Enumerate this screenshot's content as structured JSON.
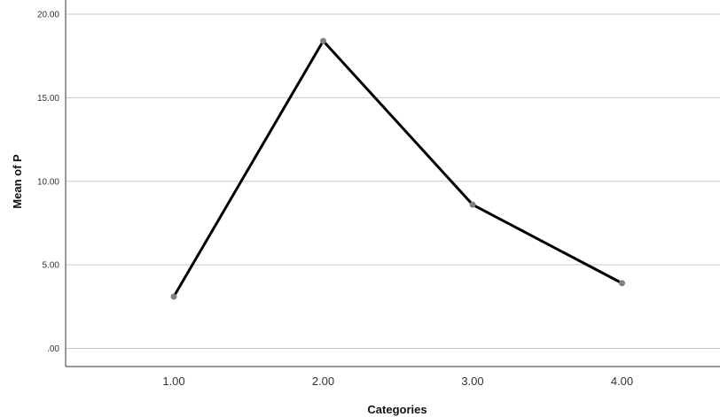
{
  "chart_data": {
    "type": "line",
    "title": "",
    "xlabel": "Categories",
    "ylabel": "Mean of P",
    "categories": [
      "1.00",
      "2.00",
      "3.00",
      "4.00"
    ],
    "x": [
      1,
      2,
      3,
      4
    ],
    "series": [
      {
        "values": [
          3.1,
          18.4,
          8.6,
          3.9
        ]
      }
    ],
    "ylim": [
      -1.1,
      21
    ],
    "yticks": [
      0,
      5,
      10,
      15,
      20
    ],
    "ytick_labels": [
      ".00",
      "5.00",
      "10.00",
      "15.00",
      "20.00"
    ],
    "grid": true,
    "line_color": "#000000",
    "marker_color": "#808080"
  }
}
